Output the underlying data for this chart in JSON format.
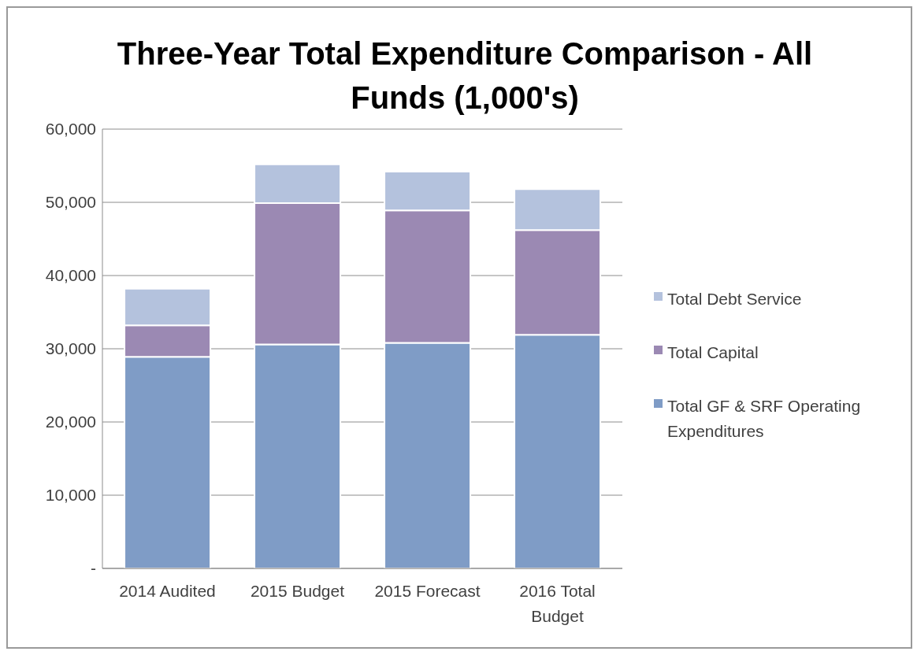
{
  "chart_data": {
    "type": "bar",
    "title": "Three-Year Total Expenditure Comparison - All Funds  (1,000's)",
    "categories": [
      "2014 Audited",
      "2015 Budget",
      "2015 Forecast",
      "2016 Total Budget"
    ],
    "stacked": true,
    "series": [
      {
        "name": "Total GF & SRF Operating Expenditures",
        "color": "#7f9cc6",
        "values": [
          28900,
          30600,
          30800,
          31900
        ]
      },
      {
        "name": "Total Capital",
        "color": "#9b89b3",
        "values": [
          4300,
          19300,
          18100,
          14300
        ]
      },
      {
        "name": "Total Debt Service",
        "color": "#b4c2dd",
        "values": [
          5000,
          5300,
          5300,
          5600
        ]
      }
    ],
    "ylim": [
      0,
      60000
    ],
    "yticks": [
      {
        "value": 0,
        "label": "-"
      },
      {
        "value": 10000,
        "label": "10,000"
      },
      {
        "value": 20000,
        "label": "20,000"
      },
      {
        "value": 30000,
        "label": "30,000"
      },
      {
        "value": 40000,
        "label": "40,000"
      },
      {
        "value": 50000,
        "label": "50,000"
      },
      {
        "value": 60000,
        "label": "60,000"
      }
    ],
    "grid": "y",
    "legend": "right"
  }
}
